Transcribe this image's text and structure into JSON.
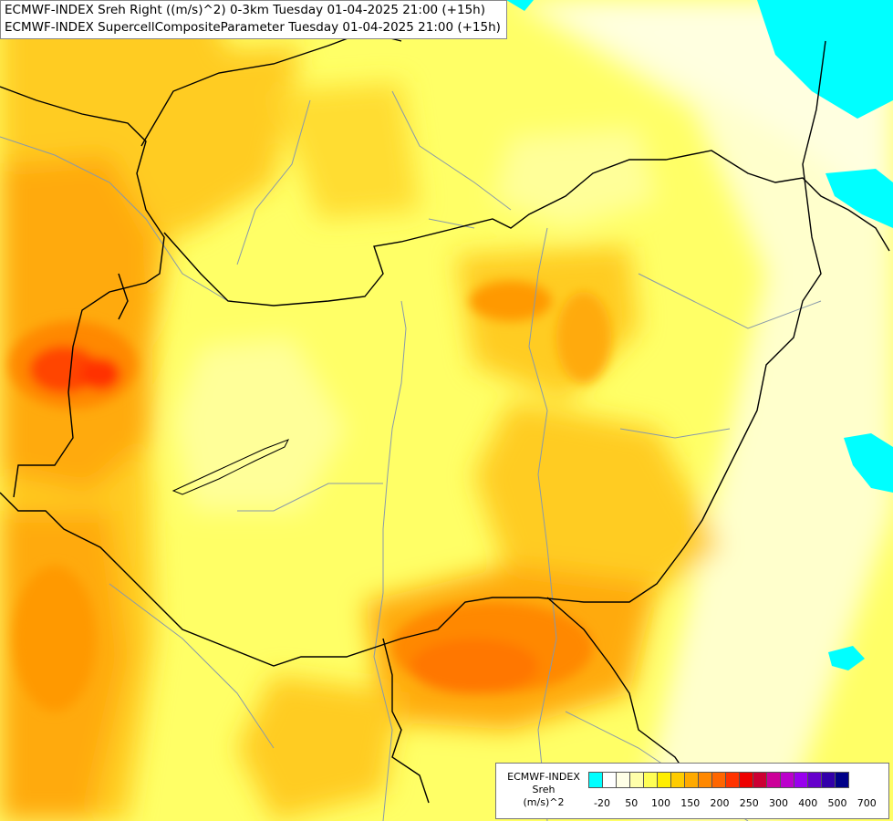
{
  "header": {
    "line1": "ECMWF-INDEX Sreh Right ((m/s)^2) 0-3km Tuesday 01-04-2025 21:00 (+15h)",
    "line2": "ECMWF-INDEX SupercellCompositeParameter Tuesday 01-04-2025 21:00 (+15h)"
  },
  "legend": {
    "line1": "ECMWF-INDEX",
    "line2": "Sreh",
    "line3": "(m/s)^2",
    "swatch_colors": [
      "#00ffff",
      "#ffffff",
      "#ffffe6",
      "#ffffaa",
      "#ffff55",
      "#ffee00",
      "#ffcc00",
      "#ffaa00",
      "#ff8800",
      "#ff6600",
      "#ff3300",
      "#ee0000",
      "#cc0033",
      "#cc0099",
      "#bb00cc",
      "#9900ee",
      "#6600cc",
      "#3300aa",
      "#000088"
    ],
    "ticks": [
      "-20",
      "50",
      "100",
      "150",
      "200",
      "250",
      "300",
      "400",
      "500",
      "700"
    ]
  }
}
